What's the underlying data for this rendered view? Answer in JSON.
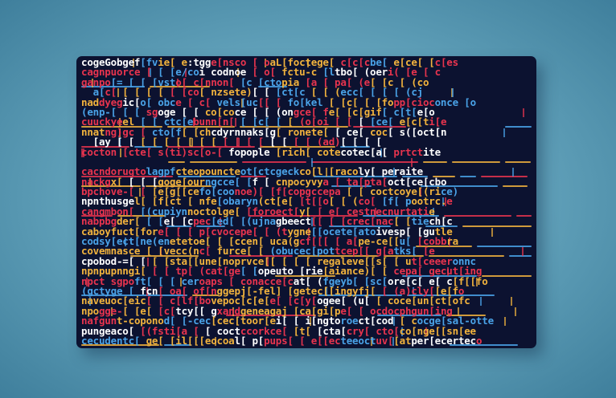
{
  "palette": [
    "#f2b33d",
    "#e8344e",
    "#4aa3e8",
    "#ffffff",
    "#f2b33d",
    "#e8344e"
  ],
  "screen_bg": "#0c1230",
  "code_lines": [
    "cogeGobgef[fvie[ e:tgge[nsco [ oaL[foctege[ c[c[cbe[ e[ce[ [c[es",
    "cagnpuorce [ [ [e/coi codnoe [ o[ fctu-c [ltbo[ (oeri( [e [ c",
    "ganpo[= [ [ [vsto[ c[nnon[ [c [ctopia [a [ pa[ (e[ [c [ (co",
    "  a[c[ [ [ [ [ [ [co[ nzsete)[ [ [ct[c [ [ (ecc[ [ [ [ (cj",
    "naddyegic[o[ obce [ c[ vels[uc[[ [ fo[kel [ [c[ [ [fopp[cioconce [o",
    "(enp-[ [ [ sgoge [ [ co[coce [ [ (ongce[ fe[ [c[gif[ c[t[e[o",
    "cuuckyeel [ [ ctc[ebunn[n[ [ [c[ [ [ (o[oi [ [ [ [ce[ e[c[ti[e",
    "nnatng)gc [ cto[f[ [chcdyrnnaks[g[ ronete[ [ ce[ coc[ s([oct[n",
    "  [ay [ [ [ [ [ [ [ [ [ [ [ [ [ [ [ [ [ (ad)[ [ [ [",
    "cocton [cte[ s(ti)sc[o-[ fopople [rich[ cotecotec[a[ prtctite",
    "",
    "cacndorugtolagpfcteopouncteot[ctcgeckco[l [racoly[ peraite",
    "nackgx[ [ [ [goge[ourngcce[ [f [ cnpocyvya [ ta[pta[oct[ce[cbo",
    "bpchove-[ [ [e[g[[cefo[coonoe)[ [f[copgccepa [ [ coctcoye[(rice)",
    "npnthusgel[ [f[ct [ nfe[obaryn(ct[e[ [t[[o[ [ (co[ [f[ pootrc.e",
    "cangmbon[ [(cupiynnoctolge[ [foroect[y[ [ e[ cestnecnurtatie",
    "nabpbgder[ [ [e[ [cpec[ed[ [(ujnagbeect[[ [ [crec[nac[ [tiech[c",
    "caboyfuct[fore[ [ [ p[cvocepe[ [ (tygne[[ocete[atoivesp[ [gutle",
    "codsy[ect[ne(enetetoe[ [ [ccen[ uca(gcf[[[ [ a[pe-ce[[u[ [cobbra",
    "covemnasce [ [vecc(nc[ furce[ [ (obucec[pottcep[[ g[atks[ [e",
    "cpobod-=[ [ [ [sta[[une[noprvce[[ [ [ [ regaleve[[s[ [ ut[ceeeronnc",
    "npnpupnngi[ [ [ tp[ (cat[ge[ [opeuto [rie[aiance)[ [ cepa[ gecut[ing",
    "npct sgpoft[ [ [ ceroaps [ conacce[cat[ (fgeyb[ [sc[ore[c[ e[ c[f[[fo",
    "(gctyge [ fcn[ oa[ of[nggepj[-fel] [getec[[ingyfj[ [ (a)cly[[e[fo",
    "naveuoc[eic[ [ c[lf[bovepoc[c[e[e[ [c[y[ogee[ (u[ [ coce[un[ct[ofc",
    "npogge-[ [e[ [c[tcy[[ gxandgeneagaj [ca[gi[pe[ [ ocdocphgun[ing",
    "nafgunt-coponod[ [-cec[cec[toor[ei[ [ i[ngtoroect[cod [ cocge[sal-otte",
    "pungeaco[ [(fsti[a [ [ coctccorkce[ [t[ [cta[cry[ cto[co[nge[[sn[ee",
    "cecudentc[ ge[ [il[[[eocoal[ p[pups[ [ e[[ecteeoctuv[[atper[ecerteco"
  ]
}
